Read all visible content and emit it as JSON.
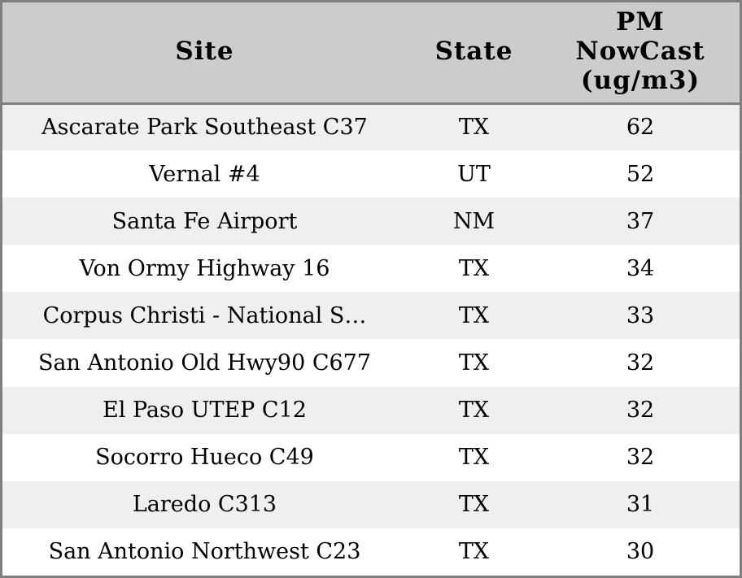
{
  "table": {
    "columns": [
      {
        "label": "Site"
      },
      {
        "label": "State"
      },
      {
        "label": "PM\nNowCast\n(ug/m3)"
      }
    ],
    "rows": [
      {
        "site": "Ascarate Park Southeast C37",
        "state": "TX",
        "pm": 62
      },
      {
        "site": "Vernal #4",
        "state": "UT",
        "pm": 52
      },
      {
        "site": "Santa Fe Airport",
        "state": "NM",
        "pm": 37
      },
      {
        "site": "Von Ormy Highway 16",
        "state": "TX",
        "pm": 34
      },
      {
        "site": "Corpus Christi - National S…",
        "state": "TX",
        "pm": 33
      },
      {
        "site": "San Antonio Old Hwy90 C677",
        "state": "TX",
        "pm": 32
      },
      {
        "site": "El Paso UTEP C12",
        "state": "TX",
        "pm": 32
      },
      {
        "site": "Socorro Hueco C49",
        "state": "TX",
        "pm": 32
      },
      {
        "site": "Laredo C313",
        "state": "TX",
        "pm": 31
      },
      {
        "site": "San Antonio Northwest C23",
        "state": "TX",
        "pm": 30
      }
    ]
  },
  "colors": {
    "header_bg": "#cccccc",
    "row_odd_bg": "#efefef",
    "row_even_bg": "#ffffff",
    "border": "#7f7f7f",
    "text": "#000000"
  },
  "chart_data": {
    "type": "table",
    "title": "",
    "columns": [
      "Site",
      "State",
      "PM NowCast (ug/m3)"
    ],
    "rows": [
      [
        "Ascarate Park Southeast C37",
        "TX",
        62
      ],
      [
        "Vernal #4",
        "UT",
        52
      ],
      [
        "Santa Fe Airport",
        "NM",
        37
      ],
      [
        "Von Ormy Highway 16",
        "TX",
        34
      ],
      [
        "Corpus Christi - National S…",
        "TX",
        33
      ],
      [
        "San Antonio Old Hwy90 C677",
        "TX",
        32
      ],
      [
        "El Paso UTEP C12",
        "TX",
        32
      ],
      [
        "Socorro Hueco C49",
        "TX",
        32
      ],
      [
        "Laredo C313",
        "TX",
        31
      ],
      [
        "San Antonio Northwest C23",
        "TX",
        30
      ]
    ],
    "layout_hints": {
      "striped_rows": true,
      "sorted_by": "PM NowCast (ug/m3) descending",
      "alignment": "center"
    }
  }
}
